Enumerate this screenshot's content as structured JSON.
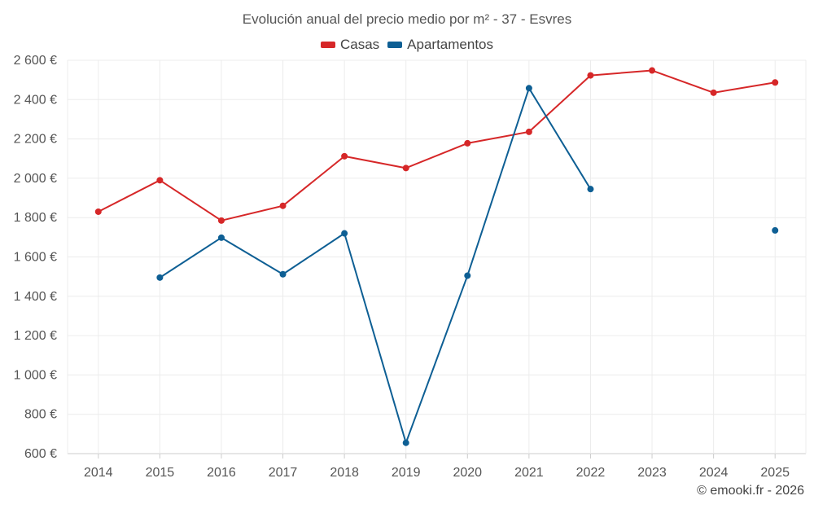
{
  "chart_data": {
    "type": "line",
    "title": "Evolución anual del precio medio por m² - 37 - Esvres",
    "categories": [
      "2014",
      "2015",
      "2016",
      "2017",
      "2018",
      "2019",
      "2020",
      "2021",
      "2022",
      "2023",
      "2024",
      "2025"
    ],
    "y_tick_labels": [
      "600 €",
      "800 €",
      "1 000 €",
      "1 200 €",
      "1 400 €",
      "1 600 €",
      "1 800 €",
      "2 000 €",
      "2 200 €",
      "2 400 €",
      "2 600 €"
    ],
    "ylim": [
      600,
      2600
    ],
    "y_step": 200,
    "grid": true,
    "legend_position": "top-center",
    "series": [
      {
        "name": "Casas",
        "color": "#d62728",
        "values": [
          1830,
          1990,
          1785,
          1860,
          2112,
          2052,
          2178,
          2236,
          2523,
          2548,
          2435,
          2487
        ]
      },
      {
        "name": "Apartamentos",
        "color": "#0e5f94",
        "values": [
          null,
          1495,
          1698,
          1512,
          1720,
          655,
          1505,
          2458,
          1945,
          null,
          null,
          1735
        ]
      }
    ]
  },
  "credit": "© emooki.fr - 2026"
}
